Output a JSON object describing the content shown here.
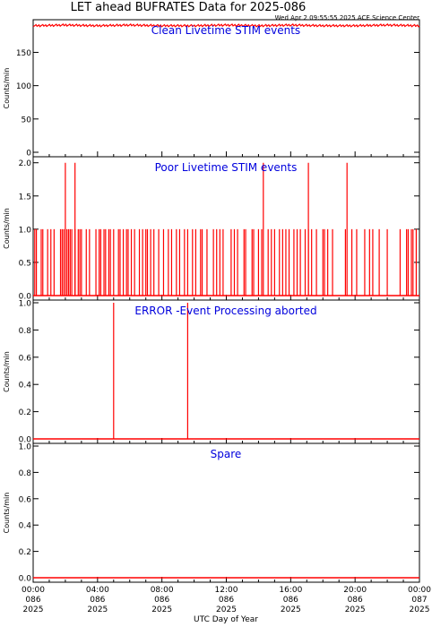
{
  "header": {
    "title": "LET ahead BUFRATES Data for 2025-086",
    "timestamp": "Wed Apr  2 09:55:55 2025 ACE Science Center"
  },
  "x_axis": {
    "label": "UTC Day of Year",
    "ticks": [
      {
        "time": "00:00",
        "doy": "086",
        "year": "2025"
      },
      {
        "time": "04:00",
        "doy": "086",
        "year": "2025"
      },
      {
        "time": "08:00",
        "doy": "086",
        "year": "2025"
      },
      {
        "time": "12:00",
        "doy": "086",
        "year": "2025"
      },
      {
        "time": "16:00",
        "doy": "086",
        "year": "2025"
      },
      {
        "time": "20:00",
        "doy": "086",
        "year": "2025"
      },
      {
        "time": "00:00",
        "doy": "087",
        "year": "2025"
      }
    ]
  },
  "colors": {
    "data": "#ff0000",
    "panel_title": "#0000dd",
    "axes": "#000000"
  },
  "chart_data": [
    {
      "type": "line",
      "title": "Clean Livetime STIM events",
      "ylabel": "Counts/min",
      "xlim": [
        0,
        24
      ],
      "ylim": [
        0,
        195
      ],
      "yticks": [
        0,
        50,
        100,
        150
      ],
      "series_description": "flat near 190 all day with small jitter",
      "x": [
        0,
        2,
        4,
        6,
        8,
        10,
        12,
        14,
        16,
        18,
        20,
        22,
        24
      ],
      "y": [
        190,
        191,
        190,
        191,
        190,
        190,
        191,
        190,
        191,
        190,
        190,
        191,
        190
      ]
    },
    {
      "type": "line",
      "title": "Poor Livetime STIM events",
      "ylabel": "Counts/min",
      "xlim": [
        0,
        24
      ],
      "ylim": [
        0,
        2.05
      ],
      "yticks": [
        0.0,
        0.5,
        1.0,
        1.5,
        2.0
      ],
      "spikes_to_1": [
        0.1,
        0.2,
        0.5,
        0.6,
        0.9,
        1.1,
        1.3,
        1.7,
        1.8,
        1.9,
        2.1,
        2.2,
        2.3,
        2.4,
        2.6,
        2.8,
        2.9,
        3.0,
        3.3,
        3.5,
        3.9,
        4.1,
        4.2,
        4.4,
        4.5,
        4.7,
        4.8,
        5.0,
        5.3,
        5.4,
        5.6,
        5.8,
        5.9,
        6.1,
        6.3,
        6.6,
        6.8,
        7.0,
        7.1,
        7.3,
        7.5,
        7.8,
        8.1,
        8.4,
        8.6,
        8.9,
        9.1,
        9.4,
        9.6,
        9.9,
        10.1,
        10.4,
        10.5,
        10.8,
        11.2,
        11.4,
        11.6,
        11.8,
        12.3,
        12.5,
        12.7,
        13.1,
        13.2,
        13.6,
        13.7,
        14.0,
        14.2,
        14.6,
        14.8,
        15.0,
        15.3,
        15.5,
        15.7,
        15.9,
        16.2,
        16.4,
        16.6,
        16.9,
        17.1,
        17.3,
        17.6,
        18.0,
        18.1,
        18.3,
        18.6,
        19.4,
        19.8,
        20.1,
        20.6,
        20.9,
        21.1,
        21.5,
        22.0,
        22.8,
        23.2,
        23.3,
        23.5,
        23.6,
        23.8
      ],
      "spikes_to_2": [
        2.0,
        2.6,
        14.3,
        17.1,
        19.5
      ]
    },
    {
      "type": "line",
      "title": "ERROR -Event Processing aborted",
      "ylabel": "Counts/min",
      "xlim": [
        0,
        24
      ],
      "ylim": [
        0,
        1.0
      ],
      "yticks": [
        0.0,
        0.2,
        0.4,
        0.6,
        0.8,
        1.0
      ],
      "spikes_to_1": [
        5.0,
        9.6
      ]
    },
    {
      "type": "line",
      "title": "Spare",
      "ylabel": "Counts/min",
      "xlim": [
        0,
        24
      ],
      "ylim": [
        0,
        1.0
      ],
      "yticks": [
        0.0,
        0.2,
        0.4,
        0.6,
        0.8,
        1.0
      ],
      "spikes_to_1": []
    }
  ]
}
